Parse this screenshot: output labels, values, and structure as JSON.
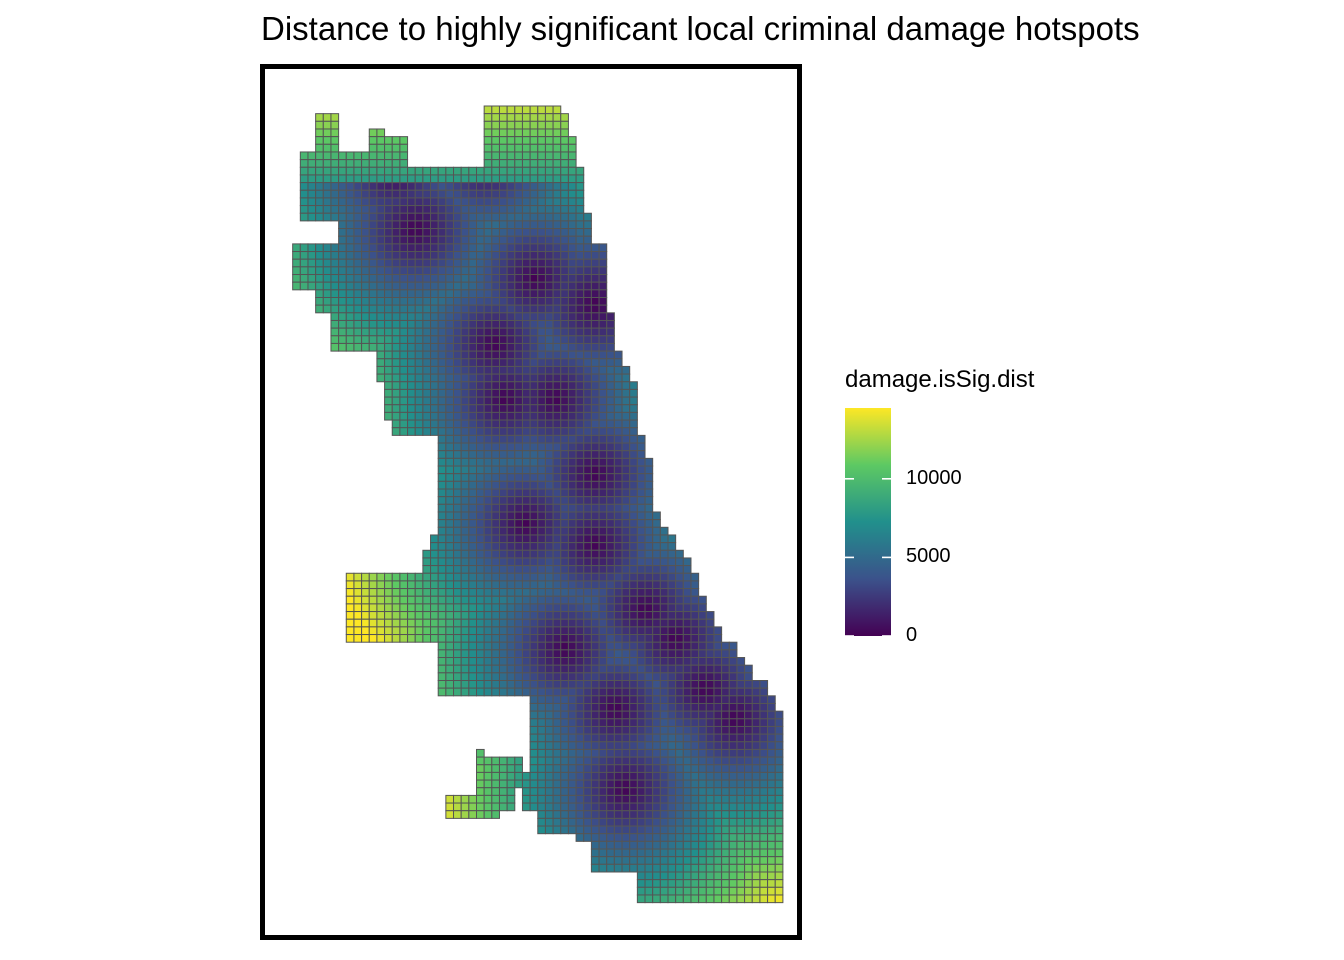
{
  "title": "Distance to highly significant local criminal damage hotspots",
  "legend": {
    "title": "damage.isSig.dist",
    "min": 0,
    "max": 14500,
    "ticks": [
      {
        "value": 0,
        "label": "0"
      },
      {
        "value": 5000,
        "label": "5000"
      },
      {
        "value": 10000,
        "label": "10000"
      }
    ],
    "palette": [
      "#440154",
      "#3b528b",
      "#21908c",
      "#5dc963",
      "#fde725"
    ],
    "palette_name": "viridis"
  },
  "map": {
    "type": "choropleth fishnet grid",
    "variable": "damage.isSig.dist",
    "cell_border_color": "#555555",
    "frame_color": "#000000",
    "pattern_note": "Highest distances at the northern edge and the western protrusions; lowest values in the central and southeastern areas"
  }
}
